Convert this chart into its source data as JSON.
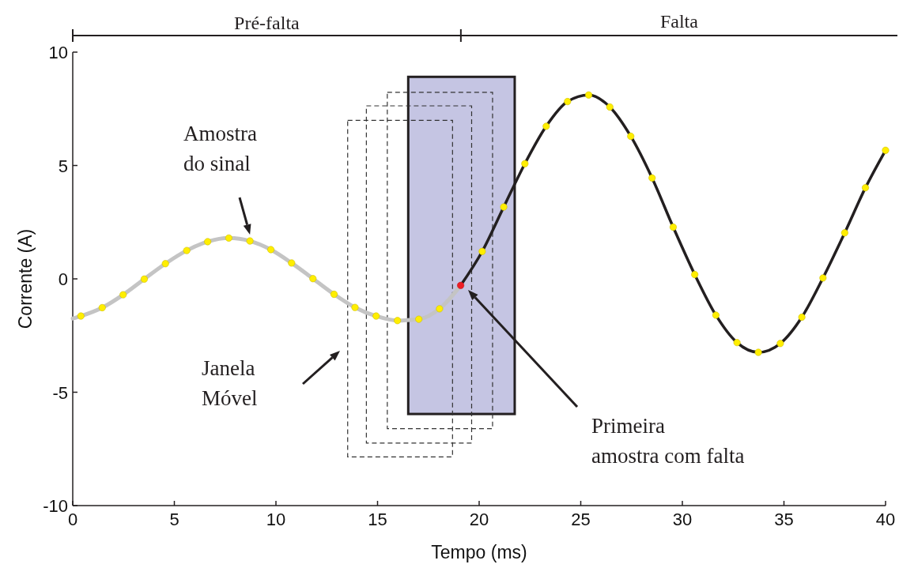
{
  "chart_data": {
    "type": "line",
    "xlabel": "Tempo (ms)",
    "ylabel": "Corrente (A)",
    "xlim": [
      0,
      40
    ],
    "xticks": [
      0,
      5,
      10,
      15,
      20,
      25,
      30,
      35,
      40
    ],
    "ylim": [
      -10,
      10
    ],
    "yticks": [
      -10,
      -5,
      0,
      5,
      10
    ],
    "grid": false,
    "series": [
      {
        "color": "#c4c4c4",
        "x": [
          0,
          0.4,
          1.45,
          2.48,
          3.52,
          4.56,
          5.61,
          6.64,
          7.68,
          8.72,
          9.75,
          10.77,
          11.82,
          12.86,
          13.89,
          14.93,
          15.98,
          17.03,
          18.05,
          19.09
        ],
        "values": [
          -1.75,
          -1.64,
          -1.27,
          -0.7,
          -0.01,
          0.67,
          1.25,
          1.64,
          1.8,
          1.67,
          1.29,
          0.7,
          0.01,
          -0.68,
          -1.26,
          -1.64,
          -1.84,
          -1.78,
          -1.32,
          -0.29
        ]
      },
      {
        "color": "#231f20",
        "x": [
          19.09,
          20.15,
          21.21,
          22.25,
          23.3,
          24.35,
          25.39,
          26.43,
          27.46,
          28.51,
          29.55,
          30.61,
          31.65,
          32.69,
          33.74,
          34.82,
          35.88,
          36.92,
          37.99,
          39.01,
          40
        ],
        "values": [
          -0.29,
          1.21,
          3.17,
          5.08,
          6.73,
          7.82,
          8.11,
          7.58,
          6.29,
          4.45,
          2.28,
          0.19,
          -1.6,
          -2.81,
          -3.24,
          -2.85,
          -1.69,
          0.04,
          2.03,
          4.02,
          5.67
        ]
      },
      {
        "type": "scatter",
        "color": "#ffee00",
        "x": [
          0.4,
          1.45,
          2.48,
          3.52,
          4.56,
          5.61,
          6.64,
          7.68,
          8.72,
          9.75,
          10.77,
          11.82,
          12.86,
          13.89,
          14.93,
          15.98,
          17.03,
          18.05,
          20.15,
          21.21,
          22.25,
          23.3,
          24.35,
          25.39,
          26.43,
          27.46,
          28.51,
          29.55,
          30.61,
          31.65,
          32.69,
          33.74,
          34.82,
          35.88,
          36.92,
          37.99,
          39.01,
          40
        ],
        "values": [
          -1.64,
          -1.27,
          -0.7,
          -0.01,
          0.67,
          1.25,
          1.64,
          1.8,
          1.67,
          1.29,
          0.7,
          0.01,
          -0.68,
          -1.26,
          -1.64,
          -1.84,
          -1.78,
          -1.32,
          1.21,
          3.17,
          5.08,
          6.73,
          7.82,
          8.11,
          7.58,
          6.29,
          4.45,
          2.28,
          0.19,
          -1.6,
          -2.81,
          -3.24,
          -2.85,
          -1.69,
          0.04,
          2.03,
          4.02,
          5.67
        ]
      },
      {
        "type": "scatter",
        "color": "#ee1c24",
        "x": [
          19.09
        ],
        "values": [
          -0.29
        ]
      }
    ],
    "annotations": [
      "Pré-falta",
      "Falta",
      {
        "text": "Amostra do sinal",
        "x": 8.72,
        "y": 1.95
      },
      "Janela Móvel",
      "Primeira amostra com falta"
    ]
  }
}
